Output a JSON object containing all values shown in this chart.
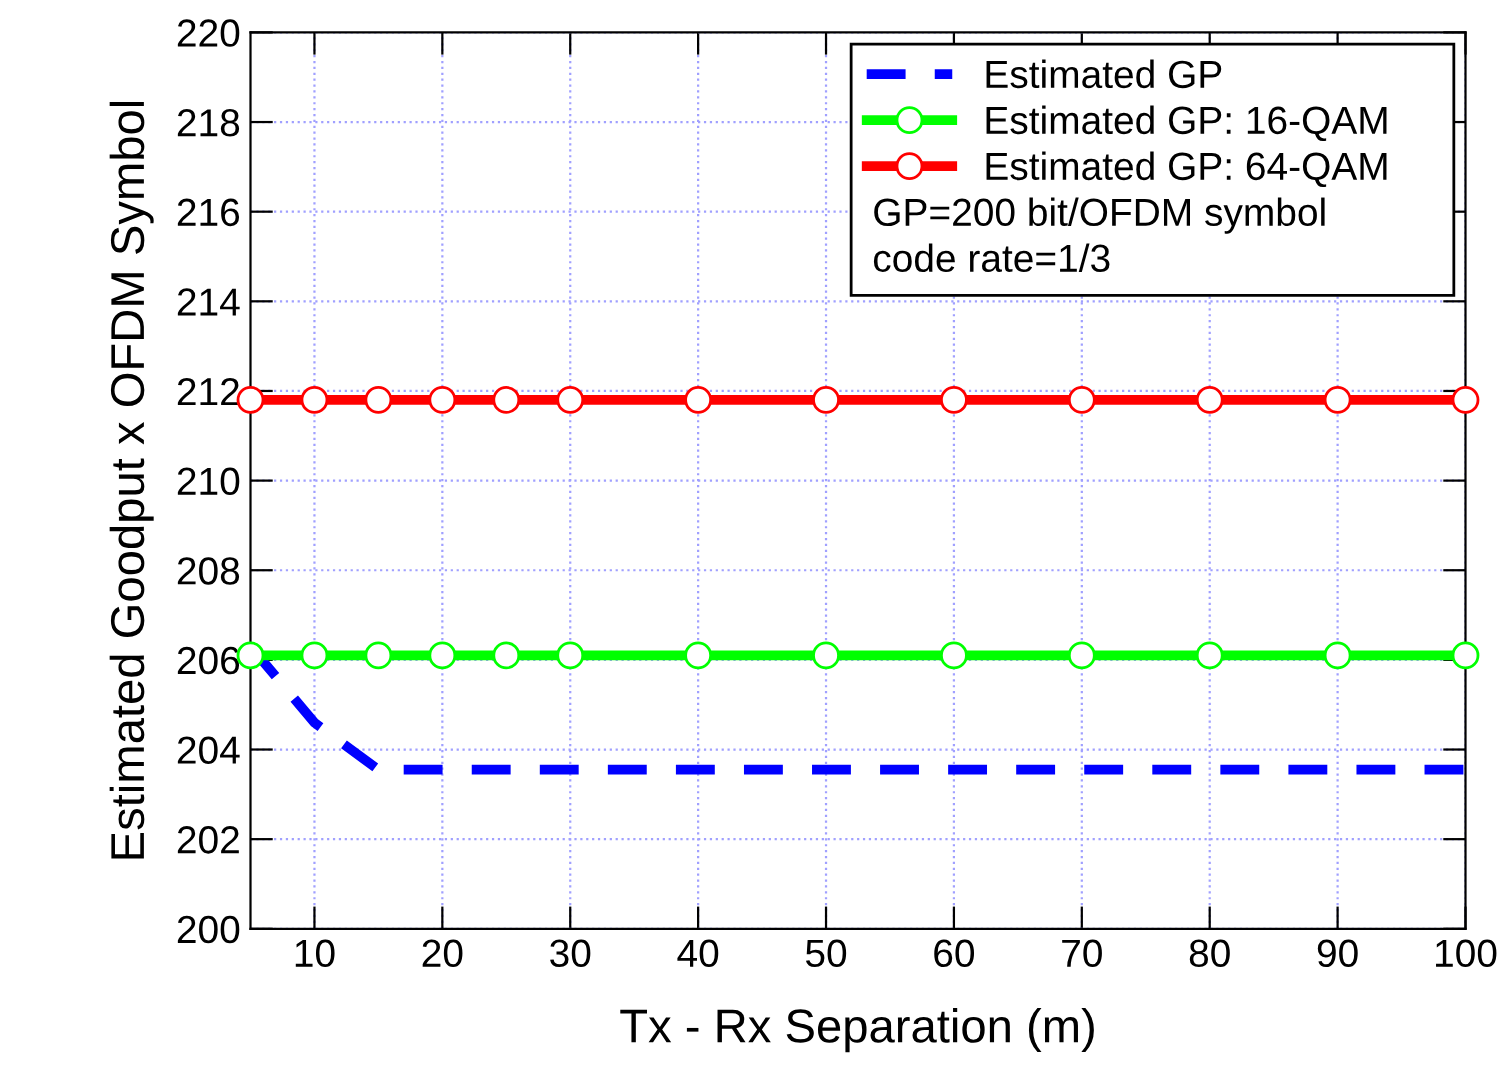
{
  "chart_data": {
    "type": "line",
    "xlabel": "Tx - Rx Separation (m)",
    "ylabel": "Estimated Goodput x OFDM Symbol",
    "x": [
      5,
      10,
      15,
      20,
      25,
      30,
      40,
      50,
      60,
      70,
      80,
      90,
      100
    ],
    "series": [
      {
        "name": "Estimated GP",
        "color": "#0000ff",
        "line_style": "dashed",
        "marker": "none",
        "values": [
          206.3,
          204.6,
          203.55,
          203.55,
          203.55,
          203.55,
          203.55,
          203.55,
          203.55,
          203.55,
          203.55,
          203.55,
          203.55
        ]
      },
      {
        "name": "Estimated GP: 16-QAM",
        "color": "#00ff00",
        "line_style": "solid",
        "marker": "circle",
        "values": [
          206.1,
          206.1,
          206.1,
          206.1,
          206.1,
          206.1,
          206.1,
          206.1,
          206.1,
          206.1,
          206.1,
          206.1,
          206.1
        ]
      },
      {
        "name": "Estimated GP: 64-QAM",
        "color": "#ff0000",
        "line_style": "solid",
        "marker": "circle",
        "values": [
          211.8,
          211.8,
          211.8,
          211.8,
          211.8,
          211.8,
          211.8,
          211.8,
          211.8,
          211.8,
          211.8,
          211.8,
          211.8
        ]
      }
    ],
    "annotations": [
      "GP=200 bit/OFDM symbol",
      "code rate=1/3"
    ],
    "xlim": [
      5,
      100
    ],
    "xticks": [
      10,
      20,
      30,
      40,
      50,
      60,
      70,
      80,
      90,
      100
    ],
    "ylim": [
      200,
      220
    ],
    "yticks": [
      200,
      202,
      204,
      206,
      208,
      210,
      212,
      214,
      216,
      218,
      220
    ],
    "grid": true,
    "legend": "top right"
  }
}
